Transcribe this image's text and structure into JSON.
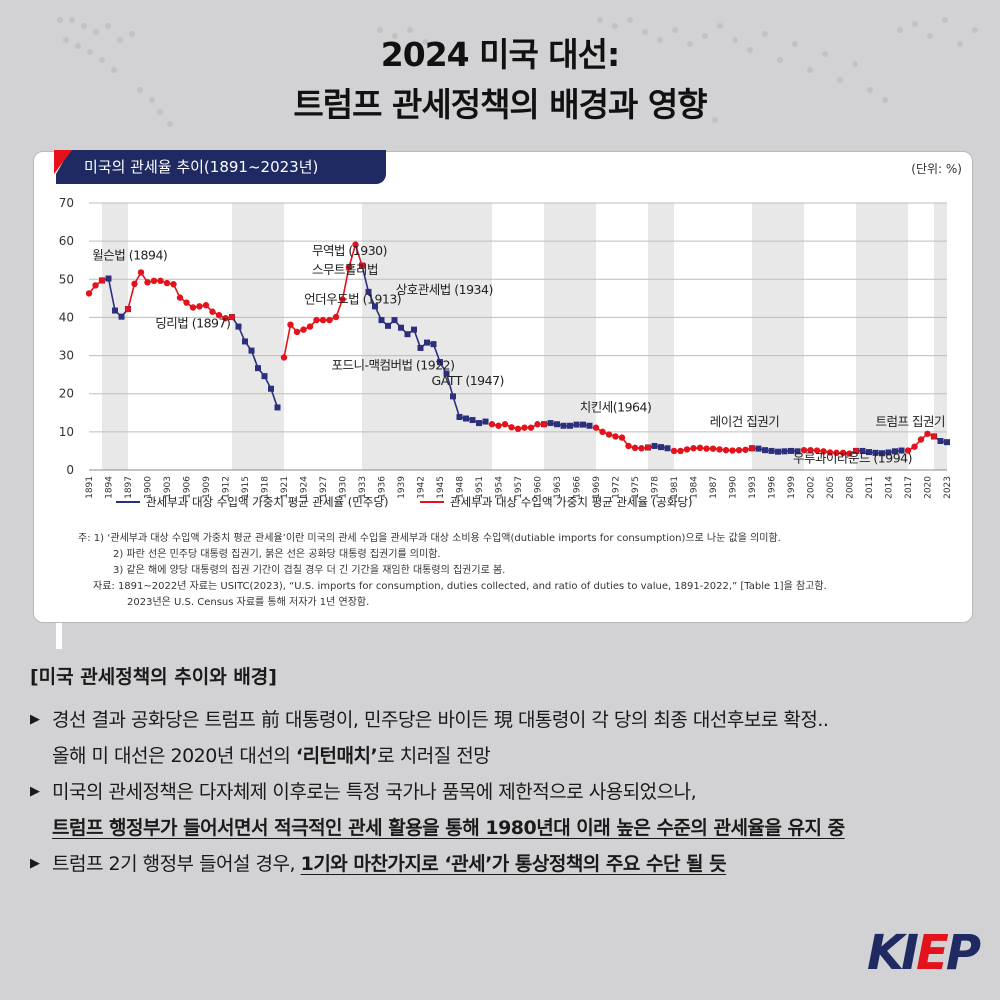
{
  "header": {
    "title_line1": "2024 미국 대선:",
    "title_line2": "트럼프 관세정책의 배경과 영향"
  },
  "chart_panel": {
    "title": "미국의 관세율 추이(1891~2023년)",
    "unit": "(단위: %)",
    "notes": [
      "주: 1) ‘관세부과 대상 수입액 가중치 평균 관세율’이란 미국의 관세 수입을 관세부과 대상 소비용 수입액(dutiable imports for consumption)으로 나눈 값을 의미함.",
      "2) 파란 선은 민주당 대통령 집권기, 붉은 선은 공화당 대통령 집권기를 의미함.",
      "3) 같은 해에 양당 대통령의 집권 기간이 겹칠 경우 더 긴 기간을 재임한 대통령의 집권기로 봄.",
      "자료: 1891~2022년 자료는 USITC(2023), “U.S. imports for consumption, duties collected, and ratio of duties to value, 1891-2022,” [Table 1]을 참고함.",
      "2023년은 U.S. Census 자료를 통해 저자가 1년 연장함."
    ]
  },
  "colors": {
    "democrat": "#2b2f7c",
    "republican": "#e3121b",
    "navy": "#1f2a63",
    "band": "#e8e8e8"
  },
  "chart_data": {
    "type": "line",
    "y_range": [
      0,
      70
    ],
    "y_ticks": [
      0,
      10,
      20,
      30,
      40,
      50,
      60,
      70
    ],
    "x_range": [
      1891,
      2023
    ],
    "x_tick_labels": [
      1891,
      1894,
      1897,
      1900,
      1903,
      1906,
      1909,
      1912,
      1915,
      1918,
      1921,
      1924,
      1927,
      1930,
      1933,
      1936,
      1939,
      1942,
      1945,
      1948,
      1951,
      1954,
      1957,
      1960,
      1963,
      1966,
      1969,
      1972,
      1975,
      1978,
      1981,
      1984,
      1987,
      1990,
      1993,
      1996,
      1999,
      2002,
      2005,
      2008,
      2011,
      2014,
      2017,
      2020,
      2023
    ],
    "grid": "horizontal",
    "legend_position": "bottom",
    "shaded_periods_note": "democratic administrations",
    "shaded_periods": [
      [
        1893,
        1897
      ],
      [
        1913,
        1921
      ],
      [
        1933,
        1953
      ],
      [
        1961,
        1969
      ],
      [
        1977,
        1981
      ],
      [
        1993,
        2001
      ],
      [
        2009,
        2017
      ],
      [
        2021,
        2023
      ]
    ],
    "series": [
      {
        "name": "관세부과 대상 수입액 가중치 평균 관세율 (민주당)",
        "party": "democrat",
        "segments": [
          [
            [
              1893,
              49.7
            ],
            [
              1894,
              50.2
            ],
            [
              1895,
              41.8
            ],
            [
              1896,
              40.2
            ],
            [
              1897,
              42.2
            ]
          ],
          [
            [
              1913,
              40.1
            ],
            [
              1914,
              37.6
            ],
            [
              1915,
              33.7
            ],
            [
              1916,
              31.3
            ],
            [
              1917,
              26.7
            ],
            [
              1918,
              24.6
            ],
            [
              1919,
              21.3
            ],
            [
              1920,
              16.4
            ]
          ],
          [
            [
              1933,
              53.6
            ],
            [
              1934,
              46.7
            ],
            [
              1935,
              42.9
            ],
            [
              1936,
              39.3
            ],
            [
              1937,
              37.8
            ],
            [
              1938,
              39.3
            ],
            [
              1939,
              37.3
            ],
            [
              1940,
              35.6
            ],
            [
              1941,
              36.8
            ],
            [
              1942,
              32.0
            ],
            [
              1943,
              33.4
            ],
            [
              1944,
              33.0
            ],
            [
              1945,
              28.3
            ],
            [
              1946,
              25.3
            ],
            [
              1947,
              19.3
            ],
            [
              1948,
              13.9
            ],
            [
              1949,
              13.5
            ],
            [
              1950,
              13.1
            ],
            [
              1951,
              12.3
            ],
            [
              1952,
              12.7
            ]
          ],
          [
            [
              1961,
              12.0
            ],
            [
              1962,
              12.3
            ],
            [
              1963,
              12.0
            ],
            [
              1964,
              11.6
            ],
            [
              1965,
              11.6
            ],
            [
              1966,
              11.9
            ],
            [
              1967,
              11.9
            ],
            [
              1968,
              11.6
            ]
          ],
          [
            [
              1977,
              5.9
            ],
            [
              1978,
              6.3
            ],
            [
              1979,
              6.0
            ],
            [
              1980,
              5.7
            ]
          ],
          [
            [
              1993,
              5.7
            ],
            [
              1994,
              5.6
            ],
            [
              1995,
              5.2
            ],
            [
              1996,
              5.0
            ],
            [
              1997,
              4.8
            ],
            [
              1998,
              4.9
            ],
            [
              1999,
              5.0
            ],
            [
              2000,
              4.9
            ]
          ],
          [
            [
              2009,
              5.0
            ],
            [
              2010,
              5.0
            ],
            [
              2011,
              4.7
            ],
            [
              2012,
              4.5
            ],
            [
              2013,
              4.4
            ],
            [
              2014,
              4.6
            ],
            [
              2015,
              4.9
            ],
            [
              2016,
              5.1
            ]
          ],
          [
            [
              2021,
              8.8
            ],
            [
              2022,
              7.6
            ],
            [
              2023,
              7.3
            ]
          ]
        ]
      },
      {
        "name": "관세부과 대상 수입액 가중치 평균 관세율 (공화당)",
        "party": "republican",
        "segments": [
          [
            [
              1891,
              46.3
            ],
            [
              1892,
              48.4
            ],
            [
              1893,
              49.7
            ]
          ],
          [
            [
              1897,
              42.2
            ],
            [
              1898,
              48.8
            ],
            [
              1899,
              51.8
            ],
            [
              1900,
              49.2
            ],
            [
              1901,
              49.6
            ],
            [
              1902,
              49.6
            ],
            [
              1903,
              49.0
            ],
            [
              1904,
              48.7
            ],
            [
              1905,
              45.2
            ],
            [
              1906,
              43.9
            ],
            [
              1907,
              42.6
            ],
            [
              1908,
              42.9
            ],
            [
              1909,
              43.2
            ],
            [
              1910,
              41.5
            ],
            [
              1911,
              40.6
            ],
            [
              1912,
              39.8
            ],
            [
              1913,
              40.1
            ]
          ],
          [
            [
              1921,
              29.5
            ],
            [
              1922,
              38.1
            ],
            [
              1923,
              36.2
            ],
            [
              1924,
              36.8
            ],
            [
              1925,
              37.6
            ],
            [
              1926,
              39.3
            ],
            [
              1927,
              39.3
            ],
            [
              1928,
              39.3
            ],
            [
              1929,
              40.1
            ],
            [
              1930,
              44.7
            ],
            [
              1931,
              53.2
            ],
            [
              1932,
              59.1
            ],
            [
              1933,
              53.6
            ]
          ],
          [
            [
              1953,
              12.0
            ],
            [
              1954,
              11.6
            ],
            [
              1955,
              12.0
            ],
            [
              1956,
              11.2
            ],
            [
              1957,
              10.8
            ],
            [
              1958,
              11.1
            ],
            [
              1959,
              11.1
            ],
            [
              1960,
              12.0
            ],
            [
              1961,
              12.0
            ]
          ],
          [
            [
              1969,
              11.1
            ],
            [
              1970,
              10.0
            ],
            [
              1971,
              9.3
            ],
            [
              1972,
              8.8
            ],
            [
              1973,
              8.5
            ],
            [
              1974,
              6.3
            ],
            [
              1975,
              5.8
            ],
            [
              1976,
              5.7
            ],
            [
              1977,
              5.9
            ]
          ],
          [
            [
              1981,
              5.0
            ],
            [
              1982,
              5.0
            ],
            [
              1983,
              5.4
            ],
            [
              1984,
              5.7
            ],
            [
              1985,
              5.8
            ],
            [
              1986,
              5.6
            ],
            [
              1987,
              5.6
            ],
            [
              1988,
              5.4
            ],
            [
              1989,
              5.2
            ],
            [
              1990,
              5.1
            ],
            [
              1991,
              5.2
            ],
            [
              1992,
              5.3
            ],
            [
              1993,
              5.7
            ]
          ],
          [
            [
              2001,
              5.2
            ],
            [
              2002,
              5.2
            ],
            [
              2003,
              5.1
            ],
            [
              2004,
              4.9
            ],
            [
              2005,
              4.6
            ],
            [
              2006,
              4.5
            ],
            [
              2007,
              4.5
            ],
            [
              2008,
              4.3
            ],
            [
              2009,
              5.0
            ]
          ],
          [
            [
              2017,
              5.1
            ],
            [
              2018,
              6.1
            ],
            [
              2019,
              8.0
            ],
            [
              2020,
              9.5
            ],
            [
              2021,
              8.8
            ]
          ]
        ]
      }
    ],
    "annotations": [
      {
        "text": "윌슨법 (1894)",
        "year": 1891.5,
        "value": 55.2
      },
      {
        "text": "딩리법 (1897)",
        "year": 1901.2,
        "value": 37.4
      },
      {
        "text": "무역법 (1930)",
        "year": 1925.3,
        "value": 56.4
      },
      {
        "text": "스무트홀리법",
        "year": 1925.3,
        "value": 51.4
      },
      {
        "text": "언더우드법 (1913)",
        "year": 1924.1,
        "value": 43.6
      },
      {
        "text": "상호관세법 (1934)",
        "year": 1938.2,
        "value": 46.1
      },
      {
        "text": "포드니-맥컴버법 (1922)",
        "year": 1928.3,
        "value": 26.3
      },
      {
        "text": "GATT (1947)",
        "year": 1943.7,
        "value": 22.3
      },
      {
        "text": "치킨세(1964)",
        "year": 1966.5,
        "value": 15.4
      },
      {
        "text": "레이건 집권기",
        "year": 1986.5,
        "value": 11.5
      },
      {
        "text": "트럼프 집권기",
        "year": 2012.0,
        "value": 11.5
      },
      {
        "text": "우루과이라운드 (1994)",
        "year": 1999.3,
        "value": 2.0
      }
    ],
    "legend": [
      "관세부과 대상 수입액 가중치 평균 관세율 (민주당)",
      "관세부과 대상 수입액 가중치 평균 관세율 (공화당)"
    ]
  },
  "body": {
    "section_title": "[미국 관세정책의 추이와 배경]",
    "b1_line1": "경선 결과 공화당은 트럼프 前 대통령이, 민주당은 바이든 現 대통령이 각 당의  최종 대선후보로 확정..",
    "b1_line2_pre": "올해 미 대선은 2020년 대선의 ",
    "b1_line2_bold": "‘리턴매치’",
    "b1_line2_post": "로 치러질 전망",
    "b2_line1": "미국의 관세정책은 다자체제 이후로는 특정 국가나 품목에 제한적으로 사용되었으나,",
    "b2_line2": "트럼프 행정부가 들어서면서 적극적인 관세 활용을 통해  1980년대 이래 높은 수준의 관세율을 유지 중",
    "b3_pre": "트럼프 2기 행정부 들어설 경우, ",
    "b3_bold": "1기와 마찬가지로 ‘관세’가 통상정책의 주요 수단 될 듯"
  },
  "logo": {
    "k": "KI",
    "e": "E",
    "p": "P"
  }
}
